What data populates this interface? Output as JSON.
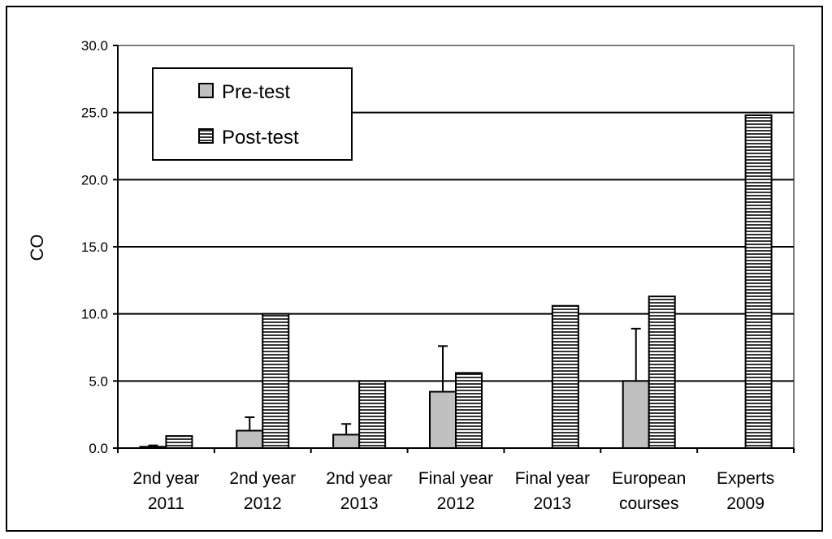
{
  "chart_data": {
    "type": "bar",
    "title": "",
    "xlabel": "",
    "ylabel": "CO",
    "ylim": [
      0,
      30
    ],
    "yticks": [
      "0.0",
      "5.0",
      "10.0",
      "15.0",
      "20.0",
      "25.0",
      "30.0"
    ],
    "grid": true,
    "legend_position": "top-left",
    "categories": [
      [
        "2nd year",
        "2011"
      ],
      [
        "2nd year",
        "2012"
      ],
      [
        "2nd year",
        "2013"
      ],
      [
        "Final year",
        "2012"
      ],
      [
        "Final year",
        "2013"
      ],
      [
        "European",
        "courses"
      ],
      [
        "Experts",
        "2009"
      ]
    ],
    "series": [
      {
        "name": "Pre-test",
        "color": "#c0c0c0",
        "pattern": "solid",
        "values": [
          0.1,
          1.3,
          1.0,
          4.2,
          null,
          5.0,
          null
        ],
        "error_upper": [
          0.2,
          2.3,
          1.8,
          7.6,
          null,
          8.9,
          null
        ]
      },
      {
        "name": "Post-test",
        "color": "#ffffff",
        "pattern": "horizontal-stripes",
        "values": [
          0.9,
          10.0,
          5.0,
          5.6,
          10.6,
          11.3,
          24.8
        ],
        "error_upper": [
          null,
          null,
          null,
          null,
          null,
          null,
          null
        ]
      }
    ]
  }
}
